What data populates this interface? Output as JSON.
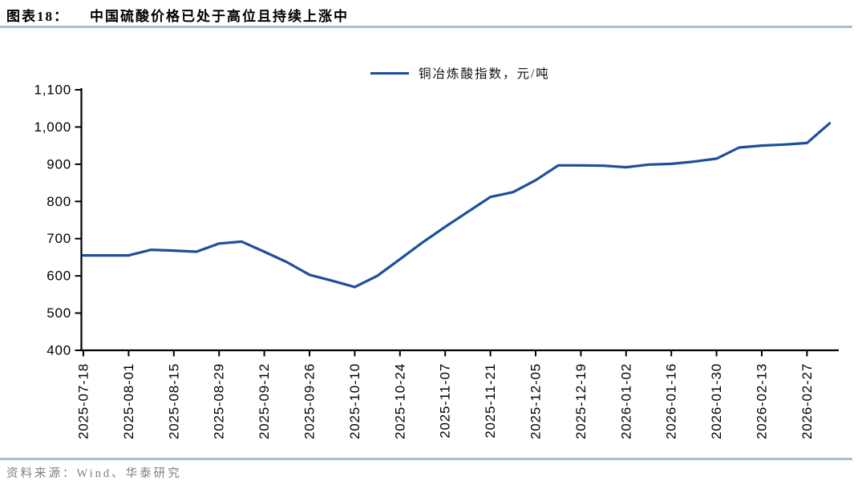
{
  "header": {
    "figure_label": "图表18：",
    "title": "中国硫酸价格已处于高位且持续上涨中"
  },
  "legend": {
    "label": "铜冶炼酸指数，元/吨",
    "line_color": "#1e4f9c"
  },
  "source": {
    "text": "资料来源：Wind、华泰研究"
  },
  "chart_data": {
    "type": "line",
    "title": "铜冶炼酸指数，元/吨",
    "series_name": "铜冶炼酸指数，元/吨",
    "x_dates": [
      "2025-07-18",
      "2025-07-25",
      "2025-08-01",
      "2025-08-08",
      "2025-08-15",
      "2025-08-22",
      "2025-08-29",
      "2025-09-05",
      "2025-09-12",
      "2025-09-19",
      "2025-09-26",
      "2025-10-03",
      "2025-10-10",
      "2025-10-17",
      "2025-10-24",
      "2025-10-31",
      "2025-11-07",
      "2025-11-14",
      "2025-11-21",
      "2025-11-28",
      "2025-12-05",
      "2025-12-12",
      "2025-12-19",
      "2025-12-26",
      "2026-01-02",
      "2026-01-09",
      "2026-01-16",
      "2026-01-23",
      "2026-01-30",
      "2026-02-06",
      "2026-02-13",
      "2026-02-20",
      "2026-02-27",
      "2026-03-06"
    ],
    "values": [
      655,
      655,
      655,
      670,
      668,
      665,
      687,
      692,
      665,
      637,
      603,
      587,
      570,
      600,
      645,
      690,
      732,
      772,
      812,
      825,
      857,
      897,
      897,
      896,
      892,
      899,
      901,
      907,
      915,
      945,
      950,
      953,
      957,
      1010
    ],
    "x_tick_labels": [
      "2025-07-18",
      "2025-08-01",
      "2025-08-15",
      "2025-08-29",
      "2025-09-12",
      "2025-09-26",
      "2025-10-10",
      "2025-10-24",
      "2025-11-07",
      "2025-11-21",
      "2025-12-05",
      "2025-12-19",
      "2026-01-02",
      "2026-01-16",
      "2026-01-30",
      "2026-02-13",
      "2026-02-27"
    ],
    "ylim": [
      400,
      1100
    ],
    "y_ticks": [
      400,
      500,
      600,
      700,
      800,
      900,
      1000,
      1100
    ],
    "y_tick_labels": [
      "400",
      "500",
      "600",
      "700",
      "800",
      "900",
      "1,000",
      "1,100"
    ],
    "line_color": "#1e4f9c",
    "axis_color": "#000000",
    "legend_position": "top-center",
    "grid": false
  }
}
